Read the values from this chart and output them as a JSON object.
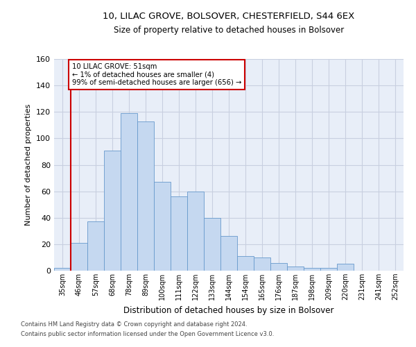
{
  "title": "10, LILAC GROVE, BOLSOVER, CHESTERFIELD, S44 6EX",
  "subtitle": "Size of property relative to detached houses in Bolsover",
  "xlabel": "Distribution of detached houses by size in Bolsover",
  "ylabel": "Number of detached properties",
  "categories": [
    "35sqm",
    "46sqm",
    "57sqm",
    "68sqm",
    "78sqm",
    "89sqm",
    "100sqm",
    "111sqm",
    "122sqm",
    "133sqm",
    "144sqm",
    "154sqm",
    "165sqm",
    "176sqm",
    "187sqm",
    "198sqm",
    "209sqm",
    "220sqm",
    "231sqm",
    "241sqm",
    "252sqm"
  ],
  "bar_values": [
    2,
    21,
    37,
    91,
    119,
    113,
    67,
    56,
    60,
    40,
    26,
    11,
    10,
    6,
    3,
    2,
    2,
    5,
    0,
    0,
    0
  ],
  "bar_color": "#c5d8f0",
  "bar_edge_color": "#6699cc",
  "background_color": "#e8eef8",
  "grid_color": "#c8cfe0",
  "ylim": [
    0,
    160
  ],
  "yticks": [
    0,
    20,
    40,
    60,
    80,
    100,
    120,
    140,
    160
  ],
  "red_line_color": "#cc0000",
  "annotation_text": "10 LILAC GROVE: 51sqm\n← 1% of detached houses are smaller (4)\n99% of semi-detached houses are larger (656) →",
  "annotation_box_color": "#ffffff",
  "annotation_box_edge_color": "#cc0000",
  "footer_line1": "Contains HM Land Registry data © Crown copyright and database right 2024.",
  "footer_line2": "Contains public sector information licensed under the Open Government Licence v3.0."
}
